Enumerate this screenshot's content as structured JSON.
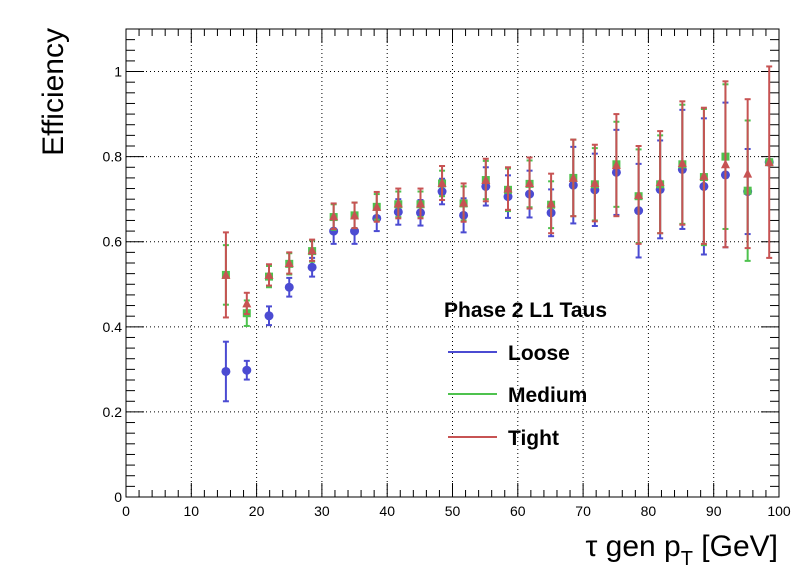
{
  "chart_data": {
    "type": "scatter",
    "title": "",
    "xlabel": "τ gen p",
    "xlabel_sub": "T",
    "xlabel_unit": " [GeV]",
    "ylabel": "Efficiency",
    "xlim": [
      0,
      100
    ],
    "ylim": [
      0,
      1.1
    ],
    "xticks": [
      0,
      10,
      20,
      30,
      40,
      50,
      60,
      70,
      80,
      90,
      100
    ],
    "yticks": [
      0,
      0.2,
      0.4,
      0.6,
      0.8,
      1
    ],
    "ytick_labels": [
      "0",
      "0.2",
      "0.4",
      "0.6",
      "0.8",
      "1"
    ],
    "grid": true,
    "legend_title": "Phase 2 L1 Taus",
    "legend_placement": "center-right",
    "x": [
      15.3,
      18.5,
      21.9,
      25.0,
      28.5,
      31.8,
      35.0,
      38.4,
      41.7,
      45.1,
      48.4,
      51.7,
      55.1,
      58.5,
      61.8,
      65.1,
      68.5,
      71.8,
      75.1,
      78.5,
      81.8,
      85.2,
      88.5,
      91.8,
      95.2,
      98.5
    ],
    "series": [
      {
        "name": "Loose",
        "color": "#4b4bd2",
        "marker": "circle",
        "values": [
          0.295,
          0.298,
          0.426,
          0.493,
          0.54,
          0.625,
          0.625,
          0.655,
          0.67,
          0.668,
          0.718,
          0.662,
          0.73,
          0.706,
          0.712,
          0.668,
          0.733,
          0.722,
          0.763,
          0.673,
          0.723,
          0.77,
          0.73,
          0.757,
          0.718,
          0.787
        ],
        "err": [
          0.07,
          0.022,
          0.022,
          0.022,
          0.022,
          0.03,
          0.03,
          0.03,
          0.03,
          0.03,
          0.03,
          0.04,
          0.045,
          0.05,
          0.055,
          0.055,
          0.09,
          0.085,
          0.1,
          0.11,
          0.115,
          0.14,
          0.16,
          0.17,
          0.1,
          0.0
        ]
      },
      {
        "name": "Medium",
        "color": "#4ec24e",
        "marker": "square",
        "values": [
          0.522,
          0.432,
          0.518,
          0.548,
          0.578,
          0.658,
          0.662,
          0.682,
          0.688,
          0.688,
          0.737,
          0.69,
          0.745,
          0.722,
          0.736,
          0.687,
          0.75,
          0.735,
          0.782,
          0.707,
          0.735,
          0.782,
          0.752,
          0.8,
          0.72,
          0.787
        ],
        "err": [
          0.07,
          0.03,
          0.025,
          0.025,
          0.025,
          0.03,
          0.03,
          0.03,
          0.03,
          0.03,
          0.03,
          0.04,
          0.045,
          0.05,
          0.055,
          0.055,
          0.09,
          0.085,
          0.1,
          0.11,
          0.115,
          0.14,
          0.16,
          0.17,
          0.165,
          0.0
        ]
      },
      {
        "name": "Tight",
        "color": "#c75353",
        "marker": "triangle",
        "values": [
          0.522,
          0.455,
          0.522,
          0.55,
          0.58,
          0.66,
          0.662,
          0.682,
          0.69,
          0.69,
          0.738,
          0.692,
          0.745,
          0.725,
          0.738,
          0.69,
          0.75,
          0.738,
          0.78,
          0.71,
          0.74,
          0.785,
          0.755,
          0.782,
          0.76,
          0.787
        ],
        "err": [
          0.1,
          0.025,
          0.025,
          0.025,
          0.025,
          0.03,
          0.03,
          0.035,
          0.035,
          0.035,
          0.04,
          0.045,
          0.05,
          0.05,
          0.06,
          0.07,
          0.09,
          0.09,
          0.12,
          0.115,
          0.12,
          0.145,
          0.16,
          0.195,
          0.175,
          0.225
        ]
      }
    ]
  }
}
